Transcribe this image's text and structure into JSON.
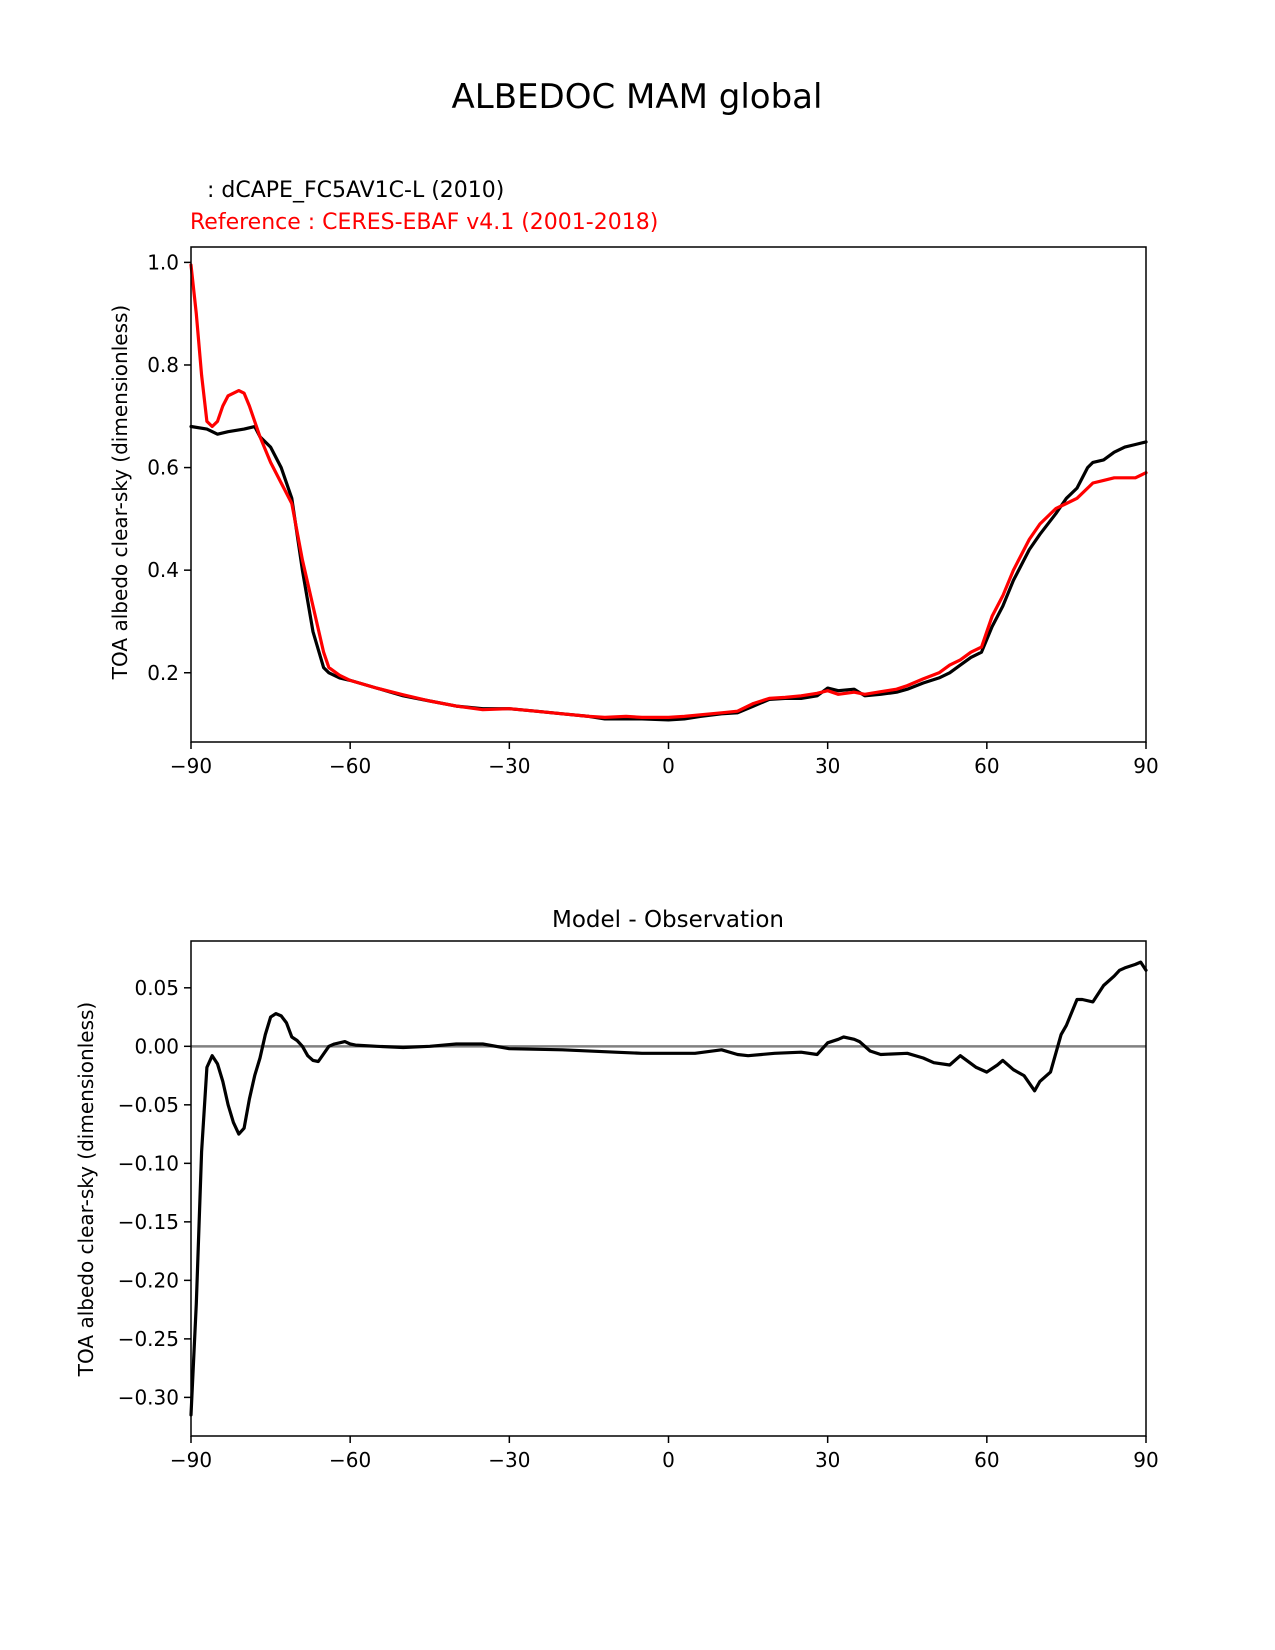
{
  "figure_title": "ALBEDOC MAM global",
  "colors": {
    "model": "#000000",
    "reference": "#ff0000",
    "zero_line": "#808080",
    "axes": "#000000"
  },
  "chart_data": [
    {
      "type": "line",
      "model_label": ": dCAPE_FC5AV1C-L (2010)",
      "reference_label": "Reference : CERES-EBAF v4.1 (2001-2018)",
      "ylabel": "TOA albedo clear-sky (dimensionless)",
      "xlim": [
        -90,
        90
      ],
      "ylim": [
        0.065,
        1.03
      ],
      "xticks": [
        -90,
        -60,
        -30,
        0,
        30,
        60,
        90
      ],
      "xtick_labels": [
        "−90",
        "−60",
        "−30",
        "0",
        "30",
        "60",
        "90"
      ],
      "yticks": [
        0.2,
        0.4,
        0.6,
        0.8,
        1.0
      ],
      "ytick_labels": [
        "0.2",
        "0.4",
        "0.6",
        "0.8",
        "1.0"
      ],
      "series": [
        {
          "role": "model",
          "x": [
            -90,
            -87,
            -85,
            -83,
            -80,
            -78,
            -77,
            -75,
            -73,
            -71,
            -69,
            -67,
            -65,
            -64,
            -62,
            -60,
            -55,
            -50,
            -45,
            -40,
            -35,
            -30,
            -25,
            -20,
            -15,
            -12,
            -8,
            -5,
            0,
            3,
            6,
            10,
            13,
            16,
            19,
            22,
            25,
            28,
            30,
            32,
            35,
            37,
            40,
            43,
            45,
            48,
            51,
            53,
            55,
            57,
            59,
            61,
            63,
            65,
            68,
            70,
            73,
            75,
            77,
            79,
            80,
            82,
            84,
            86,
            88,
            90
          ],
          "y": [
            0.68,
            0.675,
            0.665,
            0.67,
            0.675,
            0.68,
            0.66,
            0.64,
            0.6,
            0.54,
            0.4,
            0.28,
            0.21,
            0.2,
            0.19,
            0.185,
            0.17,
            0.155,
            0.145,
            0.135,
            0.13,
            0.13,
            0.125,
            0.12,
            0.115,
            0.11,
            0.11,
            0.11,
            0.108,
            0.11,
            0.115,
            0.12,
            0.122,
            0.135,
            0.148,
            0.15,
            0.15,
            0.155,
            0.17,
            0.165,
            0.168,
            0.155,
            0.158,
            0.162,
            0.168,
            0.18,
            0.19,
            0.2,
            0.215,
            0.23,
            0.24,
            0.29,
            0.33,
            0.38,
            0.44,
            0.47,
            0.51,
            0.54,
            0.56,
            0.6,
            0.61,
            0.615,
            0.63,
            0.64,
            0.645,
            0.65
          ]
        },
        {
          "role": "reference",
          "x": [
            -90,
            -89,
            -88,
            -87,
            -86,
            -85,
            -84,
            -83,
            -81,
            -80,
            -79,
            -78,
            -77,
            -75,
            -73,
            -71,
            -69,
            -67,
            -65,
            -64,
            -62,
            -60,
            -55,
            -50,
            -45,
            -40,
            -35,
            -30,
            -25,
            -20,
            -15,
            -12,
            -8,
            -5,
            0,
            3,
            6,
            10,
            13,
            16,
            19,
            22,
            25,
            28,
            30,
            32,
            35,
            37,
            40,
            43,
            45,
            48,
            51,
            53,
            55,
            57,
            59,
            61,
            63,
            65,
            68,
            70,
            73,
            75,
            77,
            79,
            80,
            82,
            84,
            86,
            88,
            90
          ],
          "y": [
            0.995,
            0.9,
            0.78,
            0.69,
            0.68,
            0.69,
            0.72,
            0.74,
            0.75,
            0.745,
            0.72,
            0.69,
            0.66,
            0.61,
            0.57,
            0.53,
            0.42,
            0.33,
            0.24,
            0.21,
            0.195,
            0.185,
            0.17,
            0.157,
            0.145,
            0.135,
            0.128,
            0.13,
            0.125,
            0.12,
            0.115,
            0.113,
            0.115,
            0.113,
            0.113,
            0.115,
            0.118,
            0.122,
            0.125,
            0.14,
            0.15,
            0.152,
            0.155,
            0.16,
            0.165,
            0.158,
            0.162,
            0.158,
            0.163,
            0.168,
            0.175,
            0.188,
            0.2,
            0.215,
            0.225,
            0.24,
            0.25,
            0.31,
            0.35,
            0.4,
            0.46,
            0.49,
            0.52,
            0.53,
            0.54,
            0.56,
            0.57,
            0.575,
            0.58,
            0.58,
            0.58,
            0.59
          ]
        }
      ]
    },
    {
      "type": "line",
      "title": "Model - Observation",
      "ylabel": "TOA albedo clear-sky (dimensionless)",
      "xlim": [
        -90,
        90
      ],
      "ylim": [
        -0.333,
        0.09
      ],
      "xticks": [
        -90,
        -60,
        -30,
        0,
        30,
        60,
        90
      ],
      "xtick_labels": [
        "−90",
        "−60",
        "−30",
        "0",
        "30",
        "60",
        "90"
      ],
      "yticks": [
        0.05,
        0.0,
        -0.05,
        -0.1,
        -0.15,
        -0.2,
        -0.25,
        -0.3
      ],
      "ytick_labels": [
        "0.05",
        "0.00",
        "−0.05",
        "−0.10",
        "−0.15",
        "−0.20",
        "−0.25",
        "−0.30"
      ],
      "zero_line": 0,
      "series": [
        {
          "role": "difference",
          "x": [
            -90,
            -89,
            -88,
            -87,
            -86,
            -85,
            -84,
            -83,
            -82,
            -81,
            -80,
            -79,
            -78,
            -77,
            -76,
            -75,
            -74,
            -73,
            -72,
            -71,
            -70,
            -69,
            -68,
            -67,
            -66,
            -64,
            -63,
            -62,
            -61,
            -60,
            -59,
            -55,
            -50,
            -45,
            -40,
            -35,
            -30,
            -20,
            -10,
            -5,
            0,
            5,
            10,
            13,
            15,
            20,
            25,
            28,
            30,
            32,
            33,
            35,
            36,
            38,
            40,
            45,
            48,
            50,
            53,
            55,
            58,
            60,
            62,
            63,
            65,
            67,
            69,
            70,
            72,
            74,
            75,
            77,
            78,
            80,
            82,
            84,
            85,
            86,
            88,
            89,
            90
          ],
          "y": [
            -0.315,
            -0.22,
            -0.09,
            -0.018,
            -0.008,
            -0.015,
            -0.03,
            -0.05,
            -0.065,
            -0.075,
            -0.07,
            -0.045,
            -0.025,
            -0.01,
            0.01,
            0.025,
            0.028,
            0.026,
            0.02,
            0.008,
            0.005,
            0.0,
            -0.008,
            -0.012,
            -0.013,
            0.0,
            0.002,
            0.003,
            0.004,
            0.002,
            0.001,
            0.0,
            -0.001,
            0.0,
            0.002,
            0.002,
            -0.002,
            -0.003,
            -0.005,
            -0.006,
            -0.006,
            -0.006,
            -0.003,
            -0.007,
            -0.008,
            -0.006,
            -0.005,
            -0.007,
            0.003,
            0.006,
            0.008,
            0.006,
            0.004,
            -0.004,
            -0.007,
            -0.006,
            -0.01,
            -0.014,
            -0.016,
            -0.008,
            -0.018,
            -0.022,
            -0.016,
            -0.012,
            -0.02,
            -0.025,
            -0.038,
            -0.03,
            -0.022,
            0.01,
            0.018,
            0.04,
            0.04,
            0.038,
            0.052,
            0.06,
            0.065,
            0.067,
            0.07,
            0.072,
            0.065
          ]
        }
      ]
    }
  ]
}
